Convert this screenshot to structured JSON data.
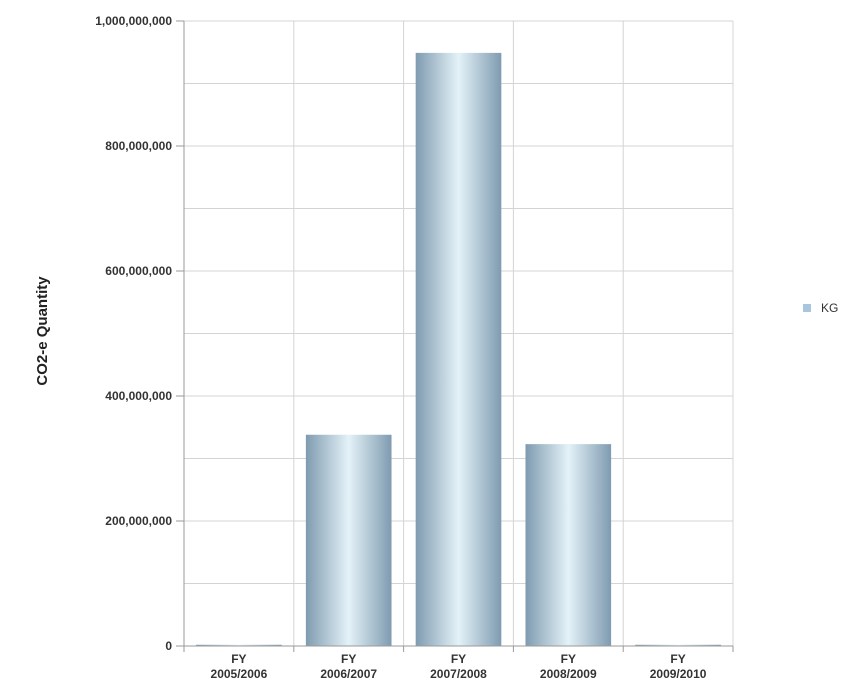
{
  "chart_data": {
    "type": "bar",
    "title": "",
    "xlabel": "",
    "ylabel": "CO2-e Quantity",
    "ylim": [
      0,
      1000000000
    ],
    "yticks": [
      0,
      200000000,
      400000000,
      600000000,
      800000000,
      1000000000
    ],
    "ytick_labels": [
      "0",
      "200,000,000",
      "400,000,000",
      "600,000,000",
      "800,000,000",
      "1,000,000,000"
    ],
    "categories": [
      {
        "line1": "FY",
        "line2": "2005/2006"
      },
      {
        "line1": "FY",
        "line2": "2006/2007"
      },
      {
        "line1": "FY",
        "line2": "2007/2008"
      },
      {
        "line1": "FY",
        "line2": "2008/2009"
      },
      {
        "line1": "FY",
        "line2": "2009/2010"
      }
    ],
    "series": [
      {
        "name": "KG",
        "values": [
          2000000,
          338000000,
          949000000,
          323000000,
          2000000
        ]
      }
    ],
    "legend": {
      "position": "right",
      "items": [
        "KG"
      ]
    },
    "grid": true,
    "colors": {
      "bar_dark": "#7f9bb0",
      "bar_light": "#e4f2f8",
      "legend_swatch": "#a9c6df",
      "grid": "#d4d4d4",
      "axis": "#9a9a9a"
    }
  }
}
